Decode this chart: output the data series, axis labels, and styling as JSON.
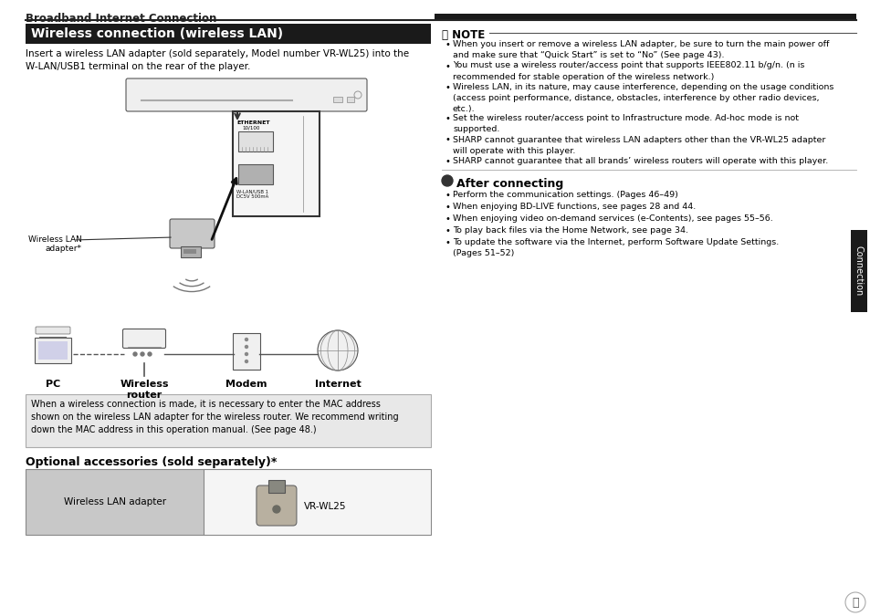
{
  "page_bg": "#ffffff",
  "header_text": "Broadband Internet Connection",
  "section_title": "Wireless connection (wireless LAN)",
  "section_title_bg": "#1a1a1a",
  "section_title_color": "#ffffff",
  "body_text_1": "Insert a wireless LAN adapter (sold separately, Model number VR-WL25) into the\nW-LAN/USB1 terminal on the rear of the player.",
  "note_header": "NOTE",
  "note_items": [
    "When you insert or remove a wireless LAN adapter, be sure to turn the main power off\nand make sure that “Quick Start” is set to “No” (See page 43).",
    "You must use a wireless router/access point that supports IEEE802.11 b/g/n. (n is\nrecommended for stable operation of the wireless network.)",
    "Wireless LAN, in its nature, may cause interference, depending on the usage conditions\n(access point performance, distance, obstacles, interference by other radio devices,\netc.).",
    "Set the wireless router/access point to Infrastructure mode. Ad-hoc mode is not\nsupported.",
    "SHARP cannot guarantee that wireless LAN adapters other than the VR-WL25 adapter\nwill operate with this player.",
    "SHARP cannot guarantee that all brands’ wireless routers will operate with this player."
  ],
  "after_connecting_header": "After connecting",
  "after_connecting_items": [
    "Perform the communication settings. (Pages 46–49)",
    "When enjoying BD-LIVE functions, see pages 28 and 44.",
    "When enjoying video on-demand services (e-Contents), see pages 55–56.",
    "To play back files via the Home Network, see page 34.",
    "To update the software via the Internet, perform Software Update Settings.\n(Pages 51–52)"
  ],
  "connection_tab_text": "Connection",
  "diagram_labels": [
    "PC",
    "Wireless\nrouter",
    "Modem",
    "Internet"
  ],
  "note_box_text": "When a wireless connection is made, it is necessary to enter the MAC address\nshown on the wireless LAN adapter for the wireless router. We recommend writing\ndown the MAC address in this operation manual. (See page 48.)",
  "optional_header": "Optional accessories (sold separately)*",
  "optional_col1": "Wireless LAN adapter",
  "optional_col2": "VR-WL25",
  "wireless_lan_label": "Wireless LAN\nadapter*",
  "note_box_bg": "#e8e8e8",
  "table_border": "#888888",
  "table_col1_bg": "#c8c8c8",
  "table_col2_bg": "#f5f5f5"
}
